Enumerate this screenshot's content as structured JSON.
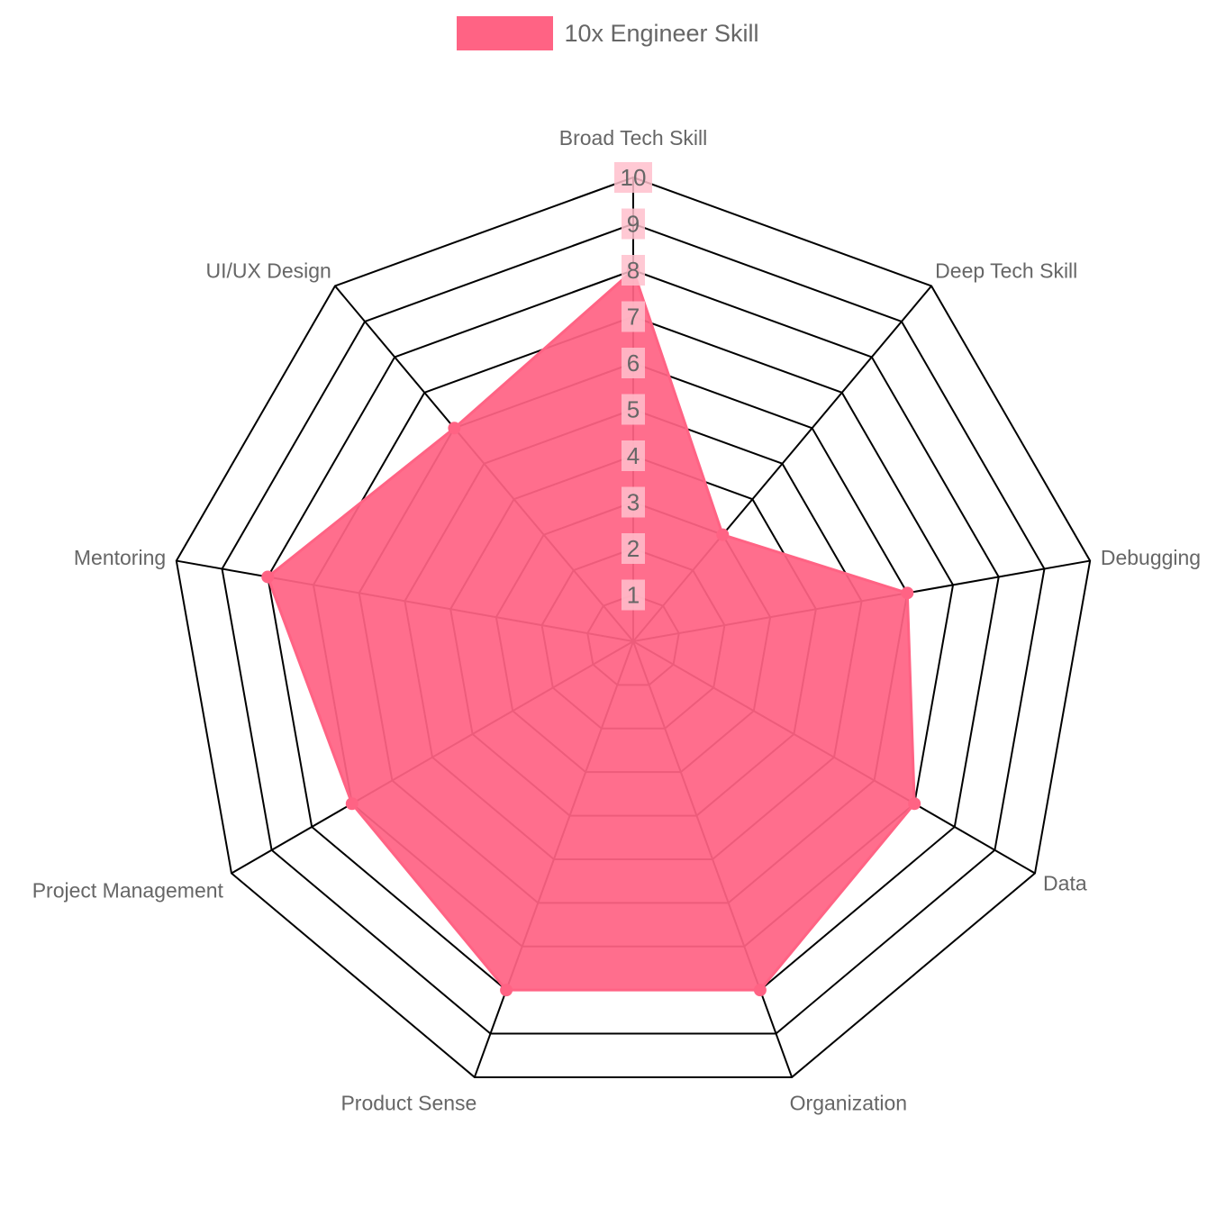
{
  "chart_data": {
    "type": "radar",
    "categories": [
      "Broad Tech Skill",
      "Deep Tech Skill",
      "Debugging",
      "Data",
      "Organization",
      "Product Sense",
      "Project Management",
      "Mentoring",
      "UI/UX Design"
    ],
    "series": [
      {
        "name": "10x Engineer Skill",
        "values": [
          8,
          3,
          6,
          7,
          8,
          8,
          7,
          8,
          6
        ]
      }
    ],
    "scale": {
      "min": 0,
      "max": 10,
      "ticks": [
        1,
        2,
        3,
        4,
        5,
        6,
        7,
        8,
        9,
        10
      ]
    },
    "legend_position": "top",
    "colors": {
      "series_fill": "#ff6384",
      "series_border": "#ff6384",
      "grid": "#000000",
      "tick_backdrop": "#ffc0cc"
    }
  }
}
